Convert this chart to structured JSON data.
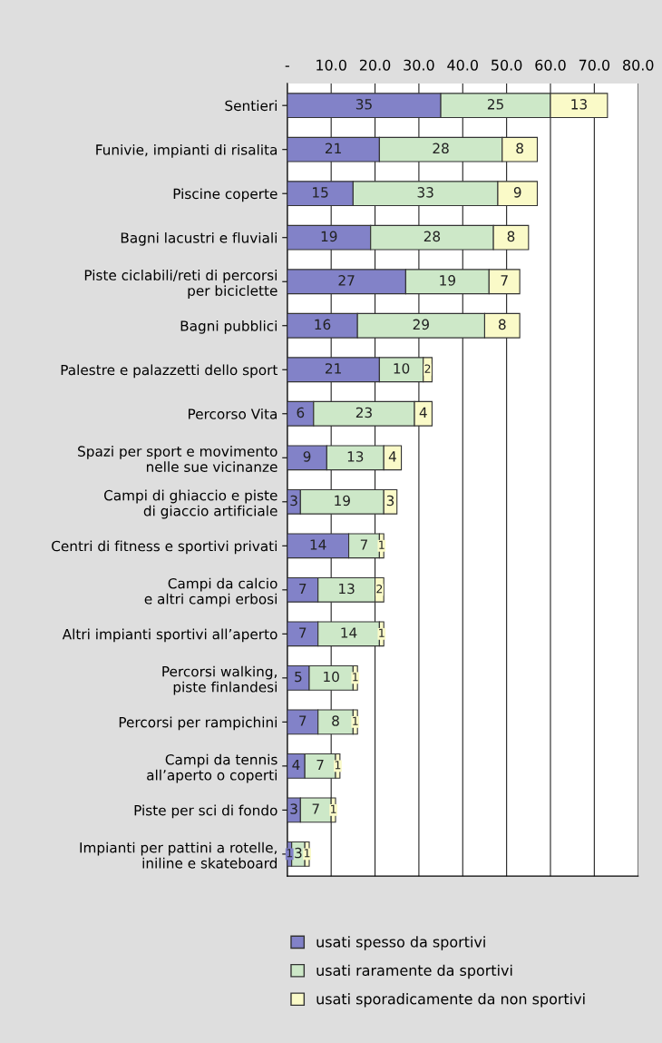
{
  "chart_data": {
    "type": "bar",
    "orientation": "horizontal",
    "stacked": true,
    "data_labels": true,
    "grid": "x",
    "legend": "bottom",
    "categories": [
      "Sentieri",
      "Funivie, impianti di risalita",
      "Piscine coperte",
      "Bagni lacustri e fluviali",
      "Piste ciclabili/reti di percorsi\nper biciclette",
      "Bagni pubblici",
      "Palestre e palazzetti dello sport",
      "Percorso Vita",
      "Spazi per sport e movimento\nnelle sue vicinanze",
      "Campi di ghiaccio e piste\ndi giaccio artificiale",
      "Centri di fitness e sportivi privati",
      "Campi da calcio\ne altri campi erbosi",
      "Altri impianti sportivi all’aperto",
      "Percorsi walking,\npiste finlandesi",
      "Percorsi per rampichini",
      "Campi da tennis\nall’aperto o coperti",
      "Piste per sci di fondo",
      "Impianti per pattini a rotelle,\niniline e skateboard"
    ],
    "series": [
      {
        "name": "usati spesso da sportivi",
        "color": "#8282c8",
        "values": [
          35,
          21,
          15,
          19,
          27,
          16,
          21,
          6,
          9,
          3,
          14,
          7,
          7,
          5,
          7,
          4,
          3,
          1
        ]
      },
      {
        "name": "usati raramente da sportivi",
        "color": "#cde8c8",
        "values": [
          25,
          28,
          33,
          28,
          19,
          29,
          10,
          23,
          13,
          19,
          7,
          13,
          14,
          10,
          8,
          7,
          7,
          3
        ]
      },
      {
        "name": "usati sporadicamente da non sportivi",
        "color": "#fafac8",
        "values": [
          13,
          8,
          9,
          8,
          7,
          8,
          2,
          4,
          4,
          3,
          1,
          2,
          1,
          1,
          1,
          1,
          1,
          1
        ]
      }
    ],
    "xlim": [
      0,
      80
    ],
    "xticks": [
      {
        "value": 0,
        "label": "-"
      },
      {
        "value": 10,
        "label": "10.0"
      },
      {
        "value": 20,
        "label": "20.0"
      },
      {
        "value": 30,
        "label": "30.0"
      },
      {
        "value": 40,
        "label": "40.0"
      },
      {
        "value": 50,
        "label": "50.0"
      },
      {
        "value": 60,
        "label": "60.0"
      },
      {
        "value": 70,
        "label": "70.0"
      },
      {
        "value": 80,
        "label": "80.0"
      }
    ]
  }
}
